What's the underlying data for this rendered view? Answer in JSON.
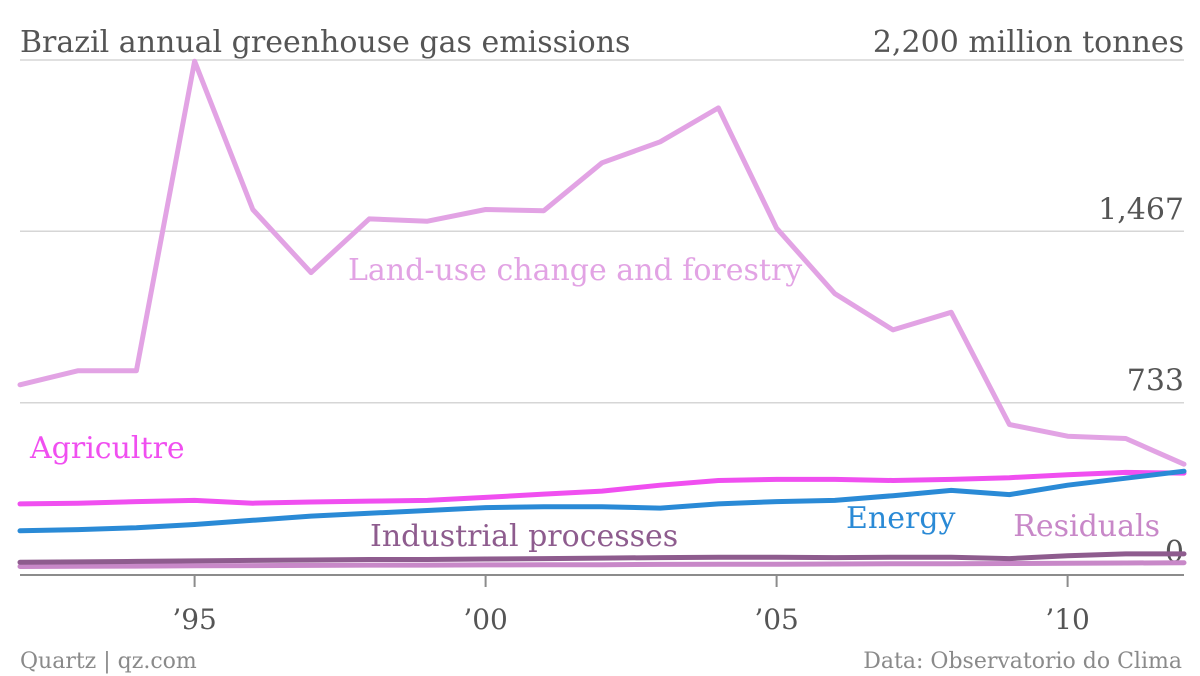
{
  "chart_data": {
    "type": "line",
    "title": "Brazil annual greenhouse gas emissions",
    "unit_label": "2,200 million tonnes",
    "ylim": [
      0,
      2200
    ],
    "yticks": [
      {
        "value": 1467,
        "label": "1,467"
      },
      {
        "value": 733,
        "label": "733"
      },
      {
        "value": 0,
        "label": "0"
      }
    ],
    "xlim": [
      1992,
      2012
    ],
    "xticks": [
      {
        "value": 1995,
        "label": "’95"
      },
      {
        "value": 2000,
        "label": "’00"
      },
      {
        "value": 2005,
        "label": "’05"
      },
      {
        "value": 2010,
        "label": "’10"
      }
    ],
    "x": [
      1992,
      1993,
      1994,
      1995,
      1996,
      1997,
      1998,
      1999,
      2000,
      2001,
      2002,
      2003,
      2004,
      2005,
      2006,
      2007,
      2008,
      2009,
      2010,
      2011,
      2012
    ],
    "series": [
      {
        "name": "Land-use change and forestry",
        "color": "#e2a3e4",
        "values": [
          810,
          870,
          870,
          2195,
          1560,
          1290,
          1520,
          1510,
          1560,
          1555,
          1760,
          1850,
          1995,
          1480,
          1200,
          1045,
          1120,
          640,
          590,
          580,
          470
        ]
      },
      {
        "name": "Agricultre",
        "color": "#f04ff0",
        "values": [
          300,
          303,
          310,
          315,
          303,
          308,
          312,
          315,
          328,
          342,
          355,
          380,
          400,
          405,
          405,
          400,
          405,
          412,
          425,
          435,
          432
        ]
      },
      {
        "name": "Energy",
        "color": "#2a8ad6",
        "values": [
          185,
          190,
          198,
          212,
          230,
          248,
          260,
          272,
          284,
          288,
          288,
          282,
          300,
          310,
          315,
          335,
          358,
          340,
          380,
          410,
          440
        ]
      },
      {
        "name": "Industrial processes",
        "color": "#8e5c8e",
        "values": [
          50,
          52,
          54,
          56,
          58,
          60,
          62,
          62,
          64,
          66,
          68,
          70,
          72,
          72,
          70,
          72,
          72,
          66,
          78,
          86,
          86
        ]
      },
      {
        "name": "Residuals",
        "color": "#c888c8",
        "values": [
          32,
          33,
          34,
          35,
          36,
          37,
          38,
          38,
          39,
          40,
          40,
          41,
          42,
          42,
          43,
          44,
          44,
          45,
          46,
          47,
          48
        ]
      }
    ]
  },
  "footer": {
    "source_left": "Quartz | qz.com",
    "source_right": "Data: Observatorio do Clima"
  }
}
